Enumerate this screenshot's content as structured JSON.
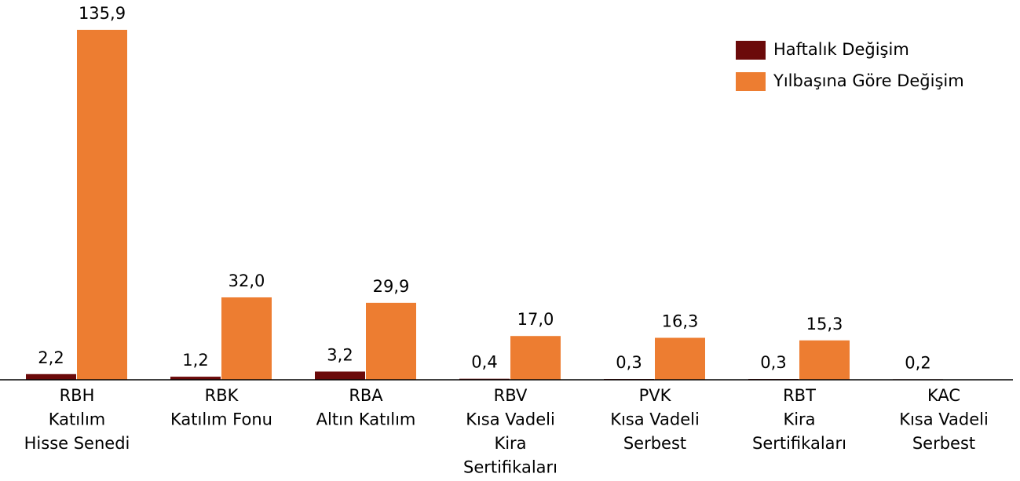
{
  "chart_data": {
    "type": "bar",
    "categories": [
      [
        "RBH",
        "Katılım",
        "Hisse Senedi"
      ],
      [
        "RBK",
        "Katılım Fonu"
      ],
      [
        "RBA",
        "Altın Katılım"
      ],
      [
        "RBV",
        "Kısa Vadeli",
        "Kira",
        "Sertifikaları"
      ],
      [
        "PVK",
        "Kısa Vadeli",
        "Serbest"
      ],
      [
        "RBT",
        "Kira",
        "Sertifikaları"
      ],
      [
        "KAC",
        "Kısa Vadeli",
        "Serbest"
      ]
    ],
    "series": [
      {
        "name": "Haftalık Değişim",
        "color": "#6b0a0a",
        "values": [
          2.2,
          1.2,
          3.2,
          0.4,
          0.3,
          0.3,
          0.2
        ],
        "value_labels": [
          "2,2",
          "1,2",
          "3,2",
          "0,4",
          "0,3",
          "0,3",
          "0,2"
        ]
      },
      {
        "name": "Yılbaşına Göre Değişim",
        "color": "#ed7d31",
        "values": [
          135.9,
          32.0,
          29.9,
          17.0,
          16.3,
          15.3,
          null
        ],
        "value_labels": [
          "135,9",
          "32,0",
          "29,9",
          "17,0",
          "16,3",
          "15,3",
          null
        ]
      }
    ],
    "legend": "top-right"
  }
}
